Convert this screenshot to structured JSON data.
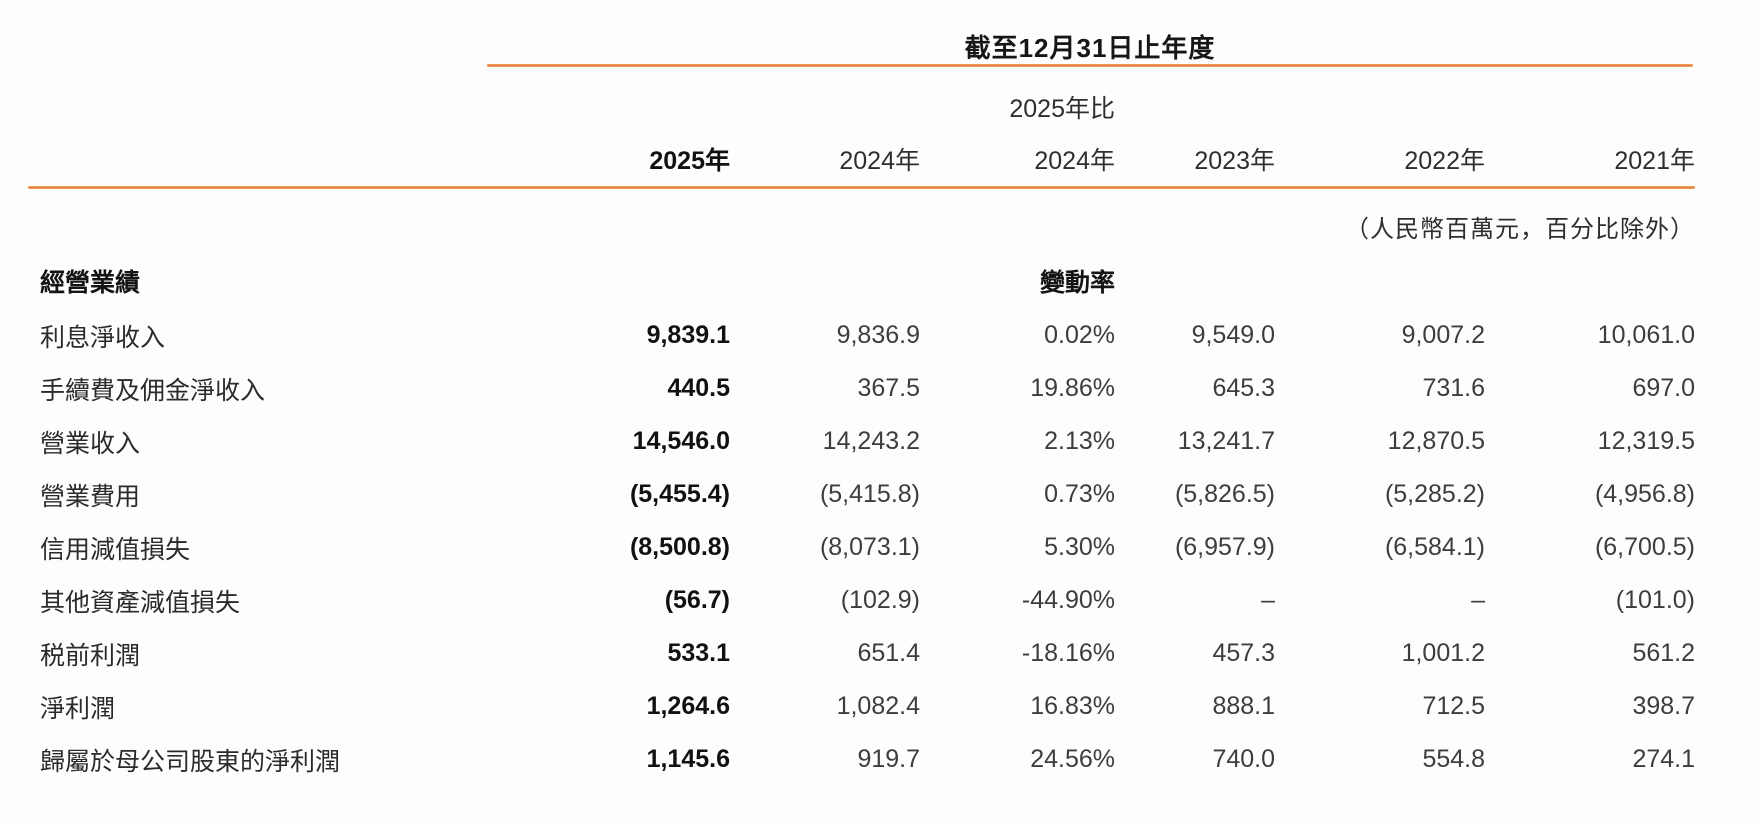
{
  "table": {
    "period_header": "截至12月31日止年度",
    "change_header_top": "2025年比",
    "unit_note": "（人民幣百萬元，百分比除外）",
    "section_label": "經營業績",
    "change_rate_label": "變動率",
    "columns": {
      "col_2025": "2025年",
      "col_2024": "2024年",
      "col_change": "2024年",
      "col_2023": "2023年",
      "col_2022": "2022年",
      "col_2021": "2021年"
    },
    "rows": [
      {
        "label": "利息淨收入",
        "y2025": "9,839.1",
        "y2024": "9,836.9",
        "change": "0.02%",
        "y2023": "9,549.0",
        "y2022": "9,007.2",
        "y2021": "10,061.0"
      },
      {
        "label": "手續費及佣金淨收入",
        "y2025": "440.5",
        "y2024": "367.5",
        "change": "19.86%",
        "y2023": "645.3",
        "y2022": "731.6",
        "y2021": "697.0"
      },
      {
        "label": "營業收入",
        "y2025": "14,546.0",
        "y2024": "14,243.2",
        "change": "2.13%",
        "y2023": "13,241.7",
        "y2022": "12,870.5",
        "y2021": "12,319.5"
      },
      {
        "label": "營業費用",
        "y2025": "(5,455.4)",
        "y2024": "(5,415.8)",
        "change": "0.73%",
        "y2023": "(5,826.5)",
        "y2022": "(5,285.2)",
        "y2021": "(4,956.8)"
      },
      {
        "label": "信用減值損失",
        "y2025": "(8,500.8)",
        "y2024": "(8,073.1)",
        "change": "5.30%",
        "y2023": "(6,957.9)",
        "y2022": "(6,584.1)",
        "y2021": "(6,700.5)"
      },
      {
        "label": "其他資產減值損失",
        "y2025": "(56.7)",
        "y2024": "(102.9)",
        "change": "-44.90%",
        "y2023": "–",
        "y2022": "–",
        "y2021": "(101.0)"
      },
      {
        "label": "税前利潤",
        "y2025": "533.1",
        "y2024": "651.4",
        "change": "-18.16%",
        "y2023": "457.3",
        "y2022": "1,001.2",
        "y2021": "561.2"
      },
      {
        "label": "淨利潤",
        "y2025": "1,264.6",
        "y2024": "1,082.4",
        "change": "16.83%",
        "y2023": "888.1",
        "y2022": "712.5",
        "y2021": "398.7"
      },
      {
        "label": "歸屬於母公司股東的淨利潤",
        "y2025": "1,145.6",
        "y2024": "919.7",
        "change": "24.56%",
        "y2023": "740.0",
        "y2022": "554.8",
        "y2021": "274.1"
      }
    ]
  },
  "colors": {
    "accent_line": "#e57e35",
    "text_primary": "#1f1f1f"
  }
}
